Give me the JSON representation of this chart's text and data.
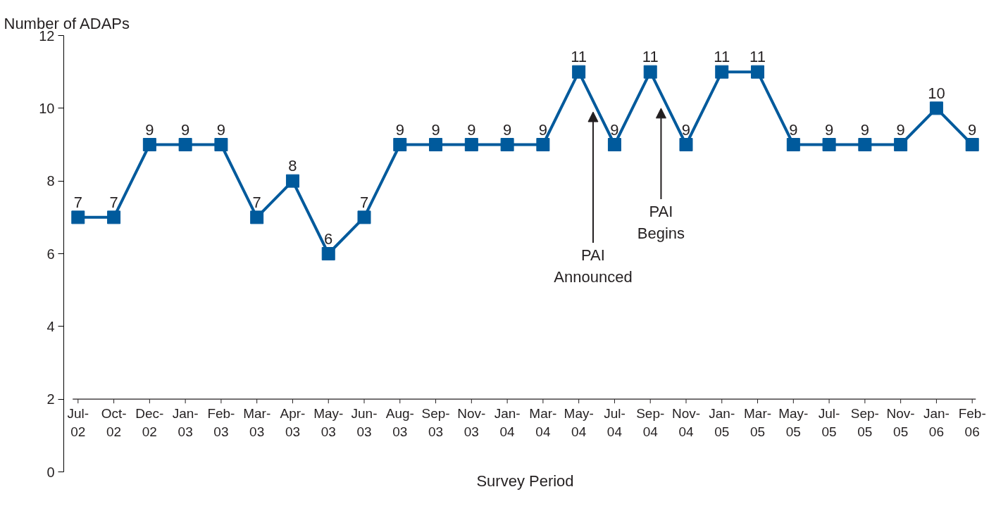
{
  "chart_data": {
    "type": "line",
    "ylabel": "Number of ADAPs",
    "xlabel": "Survey Period",
    "categories": [
      "Jul-02",
      "Oct-02",
      "Dec-02",
      "Jan-03",
      "Feb-03",
      "Mar-03",
      "Apr-03",
      "May-03",
      "Jun-03",
      "Aug-03",
      "Sep-03",
      "Nov-03",
      "Jan-04",
      "Mar-04",
      "May-04",
      "Jul-04",
      "Sep-04",
      "Nov-04",
      "Jan-05",
      "Mar-05",
      "May-05",
      "Jul-05",
      "Sep-05",
      "Nov-05",
      "Jan-06",
      "Feb-06"
    ],
    "series": [
      {
        "color": "#005a9c",
        "values": [
          7,
          7,
          9,
          9,
          9,
          7,
          8,
          6,
          7,
          9,
          9,
          9,
          9,
          9,
          11,
          9,
          11,
          9,
          11,
          11,
          9,
          9,
          9,
          9,
          10,
          9
        ]
      }
    ],
    "ylim": [
      0,
      12
    ],
    "yticks": [
      0,
      2,
      4,
      6,
      8,
      10,
      12
    ],
    "data_labels": true,
    "marker": "square",
    "line_style": "solid",
    "grid": false,
    "annotations": [
      {
        "text": "PAI Announced",
        "y": 9.9
      },
      "PAI Begins"
    ]
  }
}
